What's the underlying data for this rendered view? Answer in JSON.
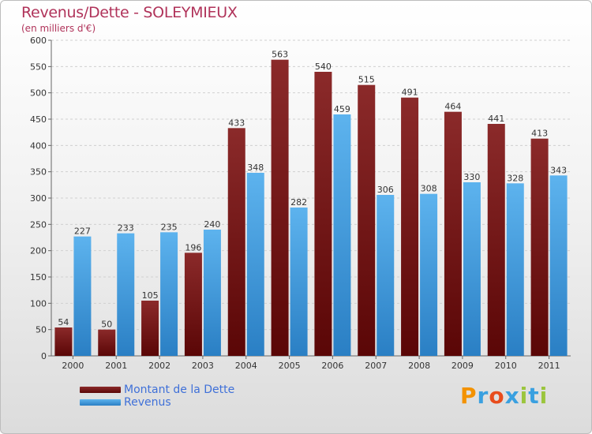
{
  "chart_data": {
    "type": "bar",
    "title": "Revenus/Dette - SOLEYMIEUX",
    "subtitle": "(en milliers d'€)",
    "categories": [
      "2000",
      "2001",
      "2002",
      "2003",
      "2004",
      "2005",
      "2006",
      "2007",
      "2008",
      "2009",
      "2010",
      "2011"
    ],
    "series": [
      {
        "name": "Montant de la Dette",
        "color": "#7a1a1a",
        "values": [
          54,
          50,
          105,
          196,
          433,
          563,
          540,
          515,
          491,
          464,
          441,
          413
        ]
      },
      {
        "name": "Revenus",
        "color": "#4aa3e6",
        "values": [
          227,
          233,
          235,
          240,
          348,
          282,
          459,
          306,
          308,
          330,
          328,
          343
        ]
      }
    ],
    "ylim": [
      0,
      600
    ],
    "yticks": [
      0,
      50,
      100,
      150,
      200,
      250,
      300,
      350,
      400,
      450,
      500,
      550,
      600
    ],
    "grid": true,
    "legend_position": "bottom-left"
  },
  "logo": {
    "text": "Proxiti",
    "colors": [
      "#f39200",
      "#3aa0e0",
      "#e84c1c",
      "#3aa0e0",
      "#9bc53d",
      "#3aa0e0",
      "#9bc53d"
    ]
  }
}
